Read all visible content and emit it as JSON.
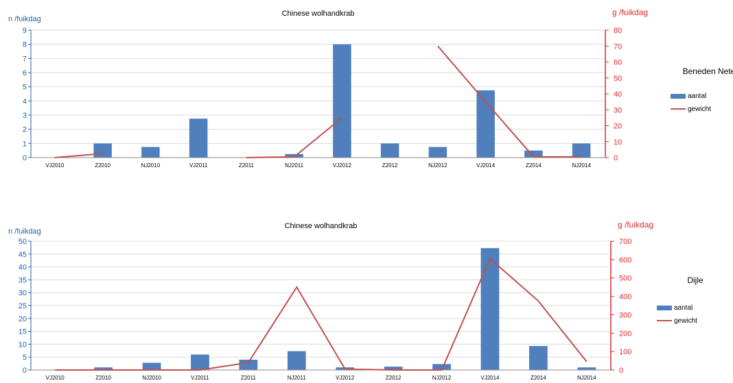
{
  "colors": {
    "bar": "#4f7fbc",
    "line": "#c0504d",
    "left_axis": "#1f5fa8",
    "right_axis": "#e0262b",
    "grid": "#d9d9d9"
  },
  "chart_data": [
    {
      "type": "bar",
      "panel_label": "Beneden Nete",
      "title": "Chinese wolhandkrab",
      "ylabel_left": "n /fuikdag",
      "ylabel_right": "g /fuikdag",
      "categories": [
        "VJ2010",
        "Z2010",
        "NJ2010",
        "VJ2011",
        "Z2011",
        "NJ2011",
        "VJ2012",
        "Z2012",
        "NJ2012",
        "VJ2014",
        "Z2014",
        "NJ2014"
      ],
      "ylim_left": [
        0,
        9
      ],
      "ylim_right": [
        0,
        80
      ],
      "yticks_left": [
        0,
        1,
        2,
        3,
        4,
        5,
        6,
        7,
        8,
        9
      ],
      "yticks_right": [
        0,
        10,
        20,
        30,
        40,
        50,
        60,
        70,
        80
      ],
      "series": [
        {
          "name": "aantal",
          "type": "bar",
          "axis": "left",
          "values": [
            0,
            1.0,
            0.75,
            2.75,
            0,
            0.25,
            8.0,
            1.0,
            0.75,
            4.75,
            0.5,
            1.0
          ]
        },
        {
          "name": "gewicht",
          "type": "line",
          "axis": "right",
          "values": [
            0,
            2.5,
            null,
            null,
            0,
            0.5,
            25.0,
            null,
            70.0,
            35.0,
            0.5,
            0.5
          ]
        }
      ],
      "grid": true,
      "legend_position": "right"
    },
    {
      "type": "bar",
      "panel_label": "Dijle",
      "title": "Chinese wolhandkrab",
      "ylabel_left": "n /fuikdag",
      "ylabel_right": "g /fuikdag",
      "categories": [
        "VJ2010",
        "Z2010",
        "NJ2010",
        "VJ2011",
        "Z2011",
        "NJ2011",
        "VJ2012",
        "Z2012",
        "NJ2012",
        "VJ2014",
        "Z2014",
        "NJ2014"
      ],
      "ylim_left": [
        0,
        50
      ],
      "ylim_right": [
        0,
        700
      ],
      "yticks_left": [
        0,
        5,
        10,
        15,
        20,
        25,
        30,
        35,
        40,
        45,
        50
      ],
      "yticks_right": [
        0,
        100,
        200,
        300,
        400,
        500,
        600,
        700
      ],
      "series": [
        {
          "name": "aantal",
          "type": "bar",
          "axis": "left",
          "values": [
            0,
            1.0,
            2.8,
            6.0,
            4.0,
            7.3,
            1.0,
            1.3,
            2.3,
            47.3,
            9.3,
            1.0
          ]
        },
        {
          "name": "gewicht",
          "type": "line",
          "axis": "right",
          "values": [
            0,
            0,
            0,
            0,
            40,
            450,
            5,
            0,
            0,
            605,
            375,
            45
          ]
        }
      ],
      "grid": true,
      "legend_position": "right"
    }
  ]
}
